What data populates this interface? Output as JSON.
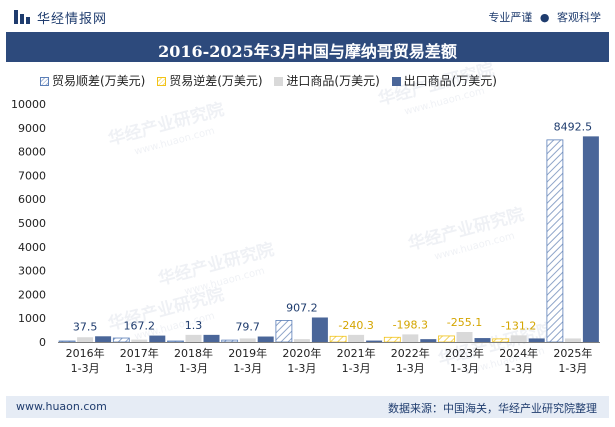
{
  "header": {
    "brand": "华经情报网",
    "tagline_left": "专业严谨",
    "tagline_sep": "●",
    "tagline_right": "客观科学"
  },
  "title": "2016-2025年3月中国与摩纳哥贸易差额",
  "footer": {
    "website": "www.huaon.com",
    "source": "数据来源：中国海关，华经产业研究院整理"
  },
  "watermark": {
    "text": "华经产业研究院",
    "url": "www.huaon.com"
  },
  "colors": {
    "surplus": "#5b7fb8",
    "deficit": "#f2c318",
    "import": "#d9d9d9",
    "export": "#4a6699",
    "surplus_label": "#1f3c6e",
    "deficit_label": "#d4a500"
  },
  "chart_data": {
    "type": "bar",
    "categories": [
      "2016年\n1-3月",
      "2017年\n1-3月",
      "2018年\n1-3月",
      "2019年\n1-3月",
      "2020年\n1-3月",
      "2021年\n1-3月",
      "2022年\n1-3月",
      "2023年\n1-3月",
      "2024年\n1-3月",
      "2025年\n1-3月"
    ],
    "ylim": [
      0,
      10000
    ],
    "yticks": [
      0,
      1000,
      2000,
      3000,
      4000,
      5000,
      6000,
      7000,
      8000,
      9000,
      10000
    ],
    "legend_position": "top",
    "grid": false,
    "series": [
      {
        "name": "贸易顺差(万美元)",
        "key": "surplus",
        "values": [
          37.5,
          167.2,
          1.3,
          79.7,
          907.2,
          null,
          null,
          null,
          null,
          8492.5
        ]
      },
      {
        "name": "贸易逆差(万美元)",
        "key": "deficit",
        "values": [
          null,
          null,
          null,
          null,
          null,
          -240.3,
          -198.3,
          -255.1,
          -131.2,
          null
        ]
      },
      {
        "name": "进口商品(万美元)",
        "key": "import",
        "values": [
          200,
          100,
          300,
          150,
          120,
          300,
          320,
          420,
          280,
          150
        ]
      },
      {
        "name": "出口商品(万美元)",
        "key": "export",
        "values": [
          240,
          270,
          300,
          230,
          1030,
          60,
          120,
          165,
          150,
          8640
        ]
      }
    ],
    "data_labels": [
      "37.5",
      "167.2",
      "1.3",
      "79.7",
      "907.2",
      "-240.3",
      "-198.3",
      "-255.1",
      "-131.2",
      "8492.5"
    ]
  }
}
